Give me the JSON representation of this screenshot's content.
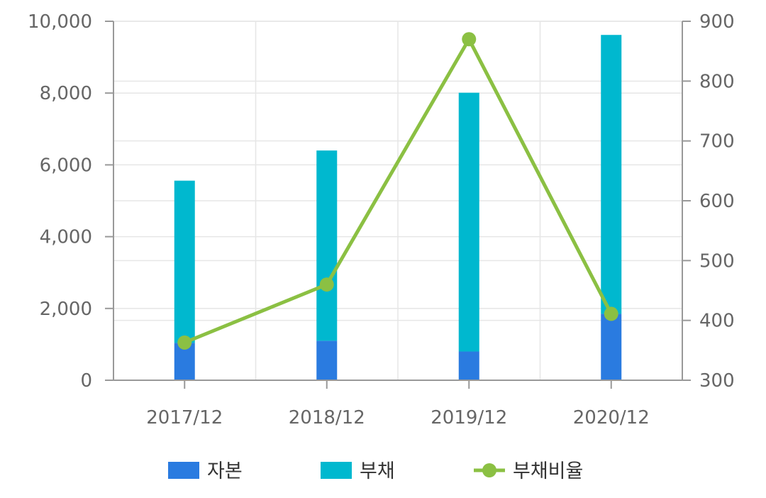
{
  "colors": {
    "equity": "#2a7be0",
    "liabilities": "#00b8cf",
    "ratio": "#8bc043",
    "grid": "#e6e6e6",
    "axis": "#999999",
    "text": "#666666"
  },
  "chart_data": {
    "type": "bar",
    "stacked": true,
    "categories": [
      "2017/12",
      "2018/12",
      "2019/12",
      "2020/12"
    ],
    "series": [
      {
        "name": "자본",
        "kind": "bar",
        "axis": "left",
        "values": [
          1040,
          1100,
          800,
          1850
        ]
      },
      {
        "name": "부채",
        "kind": "bar",
        "axis": "left",
        "values": [
          4520,
          5300,
          7210,
          7770
        ]
      },
      {
        "name": "부채비율",
        "kind": "line",
        "axis": "right",
        "values": [
          363,
          460,
          870,
          411
        ]
      }
    ],
    "y_left": {
      "min": 0,
      "max": 10000,
      "ticks": [
        "0",
        "2,000",
        "4,000",
        "6,000",
        "8,000",
        "10,000"
      ]
    },
    "y_right": {
      "min": 300,
      "max": 900,
      "ticks": [
        "300",
        "400",
        "500",
        "600",
        "700",
        "800",
        "900"
      ]
    },
    "grid": true,
    "legend": {
      "position": "bottom",
      "items": [
        "자본",
        "부채",
        "부채비율"
      ]
    }
  }
}
